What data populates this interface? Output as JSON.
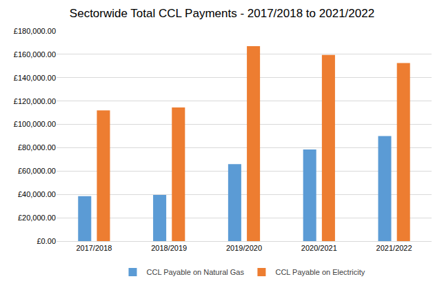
{
  "chart_data": {
    "type": "bar",
    "title": "Sectorwide Total CCL Payments - 2017/2018 to 2021/2022",
    "categories": [
      "2017/2018",
      "2018/2019",
      "2019/2020",
      "2020/2021",
      "2021/2022"
    ],
    "series": [
      {
        "name": "CCL Payable on Natural Gas",
        "color": "#5b9bd5",
        "values": [
          38500,
          39500,
          66000,
          78500,
          90000
        ]
      },
      {
        "name": "CCL Payable on Electricity",
        "color": "#ed7d31",
        "values": [
          112000,
          114500,
          167000,
          159500,
          152500
        ]
      }
    ],
    "ylim": [
      0,
      180000
    ],
    "yticks": [
      {
        "value": 0,
        "label": "£0.00"
      },
      {
        "value": 20000,
        "label": "£20,000.00"
      },
      {
        "value": 40000,
        "label": "£40,000.00"
      },
      {
        "value": 60000,
        "label": "£60,000.00"
      },
      {
        "value": 80000,
        "label": "£80,000.00"
      },
      {
        "value": 100000,
        "label": "£100,000.00"
      },
      {
        "value": 120000,
        "label": "£120,000.00"
      },
      {
        "value": 140000,
        "label": "£140,000.00"
      },
      {
        "value": 160000,
        "label": "£160,000.00"
      },
      {
        "value": 180000,
        "label": "£180,000.00"
      }
    ],
    "grid": true,
    "legend": "bottom"
  }
}
